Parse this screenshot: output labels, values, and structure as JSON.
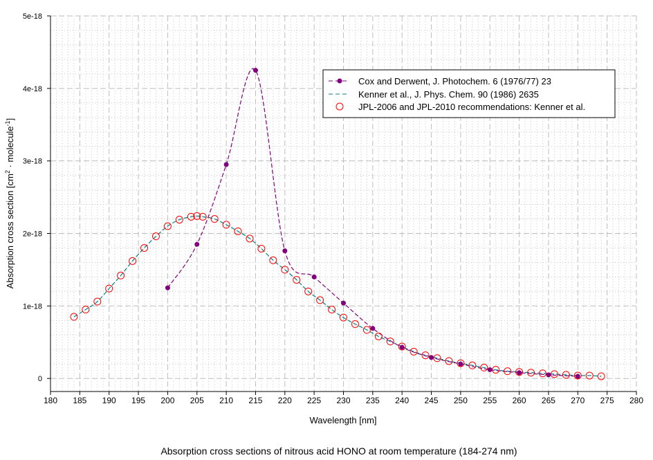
{
  "chart_data": {
    "type": "line",
    "title": "Absorption cross sections of nitrous acid HONO at room temperature (184-274 nm)",
    "xlabel": "Wavelength [nm]",
    "ylabel": "Absorption cross section [cm² · molecule⁻¹]",
    "ylabel_parts": {
      "a": "Absorption cross section [cm",
      "b": "2",
      "c": " · molecule",
      "d": "-1",
      "e": "]"
    },
    "xlim": [
      180,
      280
    ],
    "ylim": [
      -1.8e-19,
      5e-18
    ],
    "x_ticks": [
      180,
      185,
      190,
      195,
      200,
      205,
      210,
      215,
      220,
      225,
      230,
      235,
      240,
      245,
      250,
      255,
      260,
      265,
      270,
      275,
      280
    ],
    "y_ticks": [
      {
        "v": 0,
        "label": "0"
      },
      {
        "v": 1e-18,
        "label": "1e-18"
      },
      {
        "v": 2e-18,
        "label": "2e-18"
      },
      {
        "v": 3e-18,
        "label": "3e-18"
      },
      {
        "v": 4e-18,
        "label": "4e-18"
      },
      {
        "v": 5e-18,
        "label": "5e-18"
      }
    ],
    "grid": true,
    "legend_position": "top-right",
    "series": [
      {
        "name": "Cox and Derwent, J. Photochem. 6 (1976/77) 23",
        "color": "#800080",
        "style": "dashed-line-filled-dots",
        "x": [
          200,
          205,
          210,
          215,
          220,
          225,
          230,
          235,
          240,
          245,
          250,
          255,
          260,
          265,
          270
        ],
        "y": [
          1.25e-18,
          1.85e-18,
          2.95e-18,
          4.25e-18,
          1.76e-18,
          1.4e-18,
          1.04e-18,
          6.9e-19,
          4.3e-19,
          2.9e-19,
          2e-19,
          1.2e-19,
          8e-20,
          5e-20,
          3e-20
        ]
      },
      {
        "name": "Kenner et al., J. Phys. Chem. 90 (1986) 2635",
        "color": "#008080",
        "style": "dashed-line",
        "x": [
          184,
          186,
          188,
          190,
          192,
          194,
          196,
          198,
          200,
          202,
          204,
          205,
          206,
          208,
          210,
          212,
          214,
          216,
          218,
          220,
          222,
          224,
          226,
          228,
          230,
          232,
          234,
          236,
          238,
          240,
          242,
          244,
          246,
          248,
          250,
          252,
          254,
          256,
          258,
          260,
          262,
          264,
          266,
          268,
          270,
          272,
          274
        ],
        "y": [
          8.5e-19,
          9.5e-19,
          1.06e-18,
          1.24e-18,
          1.42e-18,
          1.62e-18,
          1.8e-18,
          1.96e-18,
          2.1e-18,
          2.19e-18,
          2.23e-18,
          2.24e-18,
          2.23e-18,
          2.2e-18,
          2.12e-18,
          2.03e-18,
          1.93e-18,
          1.79e-18,
          1.63e-18,
          1.5e-18,
          1.36e-18,
          1.2e-18,
          1.08e-18,
          9.5e-19,
          8.4e-19,
          7.5e-19,
          6.7e-19,
          5.8e-19,
          5.1e-19,
          4.4e-19,
          3.7e-19,
          3.2e-19,
          2.8e-19,
          2.4e-19,
          2.1e-19,
          1.8e-19,
          1.5e-19,
          1.2e-19,
          1e-19,
          9e-20,
          8e-20,
          7e-20,
          6e-20,
          5e-20,
          4e-20,
          4e-20,
          3e-20
        ]
      },
      {
        "name": "JPL-2006 and JPL-2010 recommendations: Kenner et al.",
        "color": "#ff0000",
        "style": "open-circles",
        "x": [
          184,
          186,
          188,
          190,
          192,
          194,
          196,
          198,
          200,
          202,
          204,
          205,
          206,
          208,
          210,
          212,
          214,
          216,
          218,
          220,
          222,
          224,
          226,
          228,
          230,
          232,
          234,
          236,
          238,
          240,
          242,
          244,
          246,
          248,
          250,
          252,
          254,
          256,
          258,
          260,
          262,
          264,
          266,
          268,
          270,
          272,
          274
        ],
        "y": [
          8.5e-19,
          9.5e-19,
          1.06e-18,
          1.24e-18,
          1.42e-18,
          1.62e-18,
          1.8e-18,
          1.96e-18,
          2.1e-18,
          2.19e-18,
          2.23e-18,
          2.24e-18,
          2.23e-18,
          2.2e-18,
          2.12e-18,
          2.03e-18,
          1.93e-18,
          1.79e-18,
          1.63e-18,
          1.5e-18,
          1.36e-18,
          1.2e-18,
          1.08e-18,
          9.5e-19,
          8.4e-19,
          7.5e-19,
          6.7e-19,
          5.8e-19,
          5.1e-19,
          4.4e-19,
          3.7e-19,
          3.2e-19,
          2.8e-19,
          2.4e-19,
          2.1e-19,
          1.8e-19,
          1.5e-19,
          1.2e-19,
          1e-19,
          9e-20,
          8e-20,
          7e-20,
          6e-20,
          5e-20,
          4e-20,
          4e-20,
          3e-20
        ]
      }
    ]
  }
}
